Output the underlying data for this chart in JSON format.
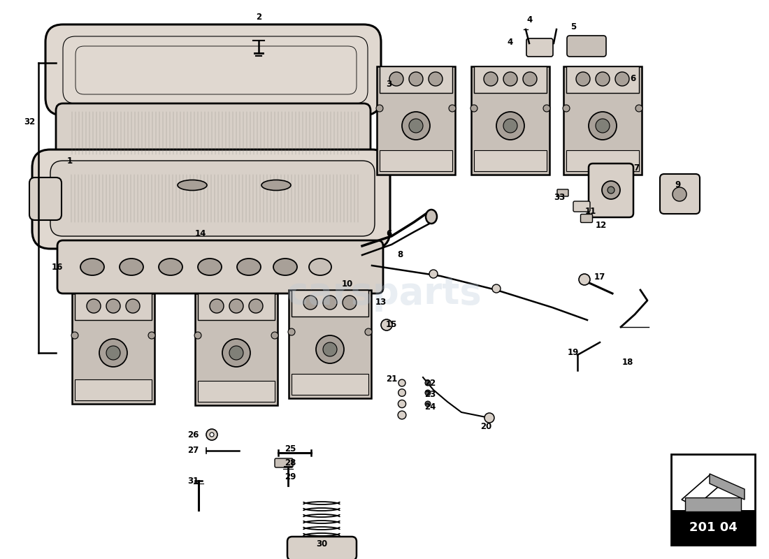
{
  "bg_color": "#ffffff",
  "diagram_code": "201 04",
  "watermark": "carsparts",
  "line_color": "#000000",
  "part_color": "#c8c0b8",
  "part_color2": "#d8d0c8",
  "part_color3": "#e0d8d0",
  "mesh_color": "#888880",
  "shadow_color": "#a8a098",
  "part_labels": [
    [
      100,
      230,
      "1"
    ],
    [
      370,
      25,
      "2"
    ],
    [
      556,
      120,
      "3"
    ],
    [
      758,
      28,
      "4"
    ],
    [
      730,
      60,
      "4"
    ],
    [
      820,
      38,
      "5"
    ],
    [
      905,
      112,
      "6"
    ],
    [
      556,
      335,
      "6"
    ],
    [
      910,
      240,
      "7"
    ],
    [
      572,
      365,
      "8"
    ],
    [
      970,
      265,
      "9"
    ],
    [
      497,
      407,
      "10"
    ],
    [
      845,
      303,
      "11"
    ],
    [
      860,
      322,
      "12"
    ],
    [
      545,
      432,
      "13"
    ],
    [
      287,
      335,
      "14"
    ],
    [
      560,
      465,
      "15"
    ],
    [
      82,
      382,
      "16"
    ],
    [
      858,
      397,
      "17"
    ],
    [
      898,
      518,
      "18"
    ],
    [
      820,
      505,
      "19"
    ],
    [
      695,
      610,
      "20"
    ],
    [
      560,
      542,
      "21"
    ],
    [
      615,
      548,
      "22"
    ],
    [
      615,
      565,
      "23"
    ],
    [
      615,
      582,
      "24"
    ],
    [
      415,
      642,
      "25"
    ],
    [
      276,
      622,
      "26"
    ],
    [
      276,
      645,
      "27"
    ],
    [
      415,
      662,
      "28"
    ],
    [
      415,
      682,
      "29"
    ],
    [
      460,
      778,
      "30"
    ],
    [
      276,
      688,
      "31"
    ],
    [
      42,
      175,
      "32"
    ],
    [
      800,
      282,
      "33"
    ]
  ]
}
